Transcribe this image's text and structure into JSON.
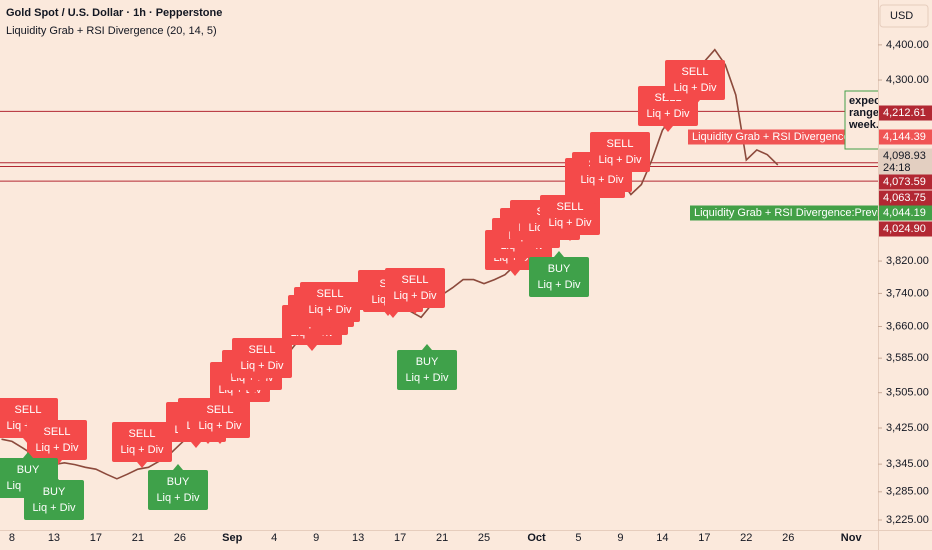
{
  "header": {
    "title": "Gold Spot / U.S. Dollar · 1h · Pepperstone",
    "indicator": "Liquidity Grab + RSI Divergence (20, 14, 5)",
    "currency": "USD"
  },
  "chart_data": {
    "type": "line",
    "categories": [
      null,
      "8",
      null,
      null,
      null,
      "13",
      null,
      null,
      null,
      "17",
      null,
      null,
      null,
      "21",
      null,
      null,
      null,
      "26",
      null,
      null,
      null,
      null,
      "Sep",
      null,
      null,
      null,
      "4",
      null,
      null,
      null,
      "9",
      null,
      null,
      null,
      "13",
      null,
      null,
      null,
      "17",
      null,
      null,
      null,
      "21",
      null,
      null,
      null,
      "25",
      null,
      null,
      null,
      null,
      "Oct",
      null,
      null,
      null,
      "5",
      null,
      null,
      null,
      "9",
      null,
      null,
      null,
      "14",
      null,
      null,
      null,
      "17",
      null,
      null,
      null,
      "22",
      null,
      null,
      null,
      "26",
      null,
      null,
      null,
      null,
      null,
      "Nov",
      null,
      null
    ],
    "values": [
      3400,
      3395,
      3381,
      3366,
      3355,
      3344,
      3348,
      3344,
      3338,
      3334,
      3323,
      3313,
      3323,
      3334,
      3338,
      3351,
      3366,
      3388,
      3410,
      3425,
      3438,
      3447,
      3461,
      3477,
      3507,
      3535,
      3558,
      3586,
      3617,
      3641,
      3658,
      3672,
      3682,
      3689,
      3701,
      3713,
      3720,
      3725,
      3713,
      3696,
      3682,
      3713,
      3737,
      3754,
      3774,
      3774,
      3764,
      3774,
      3786,
      3811,
      3829,
      3862,
      3887,
      3905,
      3939,
      3964,
      3982,
      4008,
      4029,
      4029,
      3990,
      4016,
      4081,
      4161,
      4202,
      4239,
      4287,
      4352,
      4386,
      4343,
      4258,
      4081,
      4108,
      4095,
      4068,
      null,
      null,
      null,
      null,
      null,
      null,
      null,
      null,
      null
    ],
    "color": "#8c4a3c",
    "ylim": [
      3204,
      4531
    ],
    "log_scale": true,
    "yticks": [
      {
        "value": 4400,
        "label": "4,400.00"
      },
      {
        "value": 4300,
        "label": "4,300.00"
      },
      {
        "value": 3820,
        "label": "3,820.00"
      },
      {
        "value": 3740,
        "label": "3,740.00"
      },
      {
        "value": 3660,
        "label": "3,660.00"
      },
      {
        "value": 3585,
        "label": "3,585.00"
      },
      {
        "value": 3505,
        "label": "3,505.00"
      },
      {
        "value": 3425,
        "label": "3,425.00"
      },
      {
        "value": 3345,
        "label": "3,345.00"
      },
      {
        "value": 3285,
        "label": "3,285.00"
      },
      {
        "value": 3225,
        "label": "3,225.00"
      }
    ],
    "price_labels": [
      {
        "value": 4212.61,
        "label": "4,212.61",
        "color": "#b22833",
        "line": true
      },
      {
        "value": 4144.39,
        "label": "4,144.39",
        "color": "#f05454",
        "line": false
      },
      {
        "value": 4098.93,
        "label": "4,098.93",
        "color": "#e3cfc1",
        "line": false
      },
      {
        "value": 4073.59,
        "label": "4,073.59",
        "color": "#b22833",
        "line": true
      },
      {
        "value": 4063.75,
        "label": "4,063.75",
        "color": "#b22833",
        "line": true
      },
      {
        "value": 4044.19,
        "label": "4,044.19",
        "color": "#43a047",
        "line": false
      },
      {
        "value": 4024.9,
        "label": "4,024.90",
        "color": "#b22833",
        "line": true
      }
    ],
    "countdown": "24:18",
    "level_labels": [
      "Liquidity Grab + RSI Divergence:Previous High",
      "Liquidity Grab + RSI Divergence:Previous Low"
    ],
    "note": [
      "expecti",
      "range o",
      "week."
    ],
    "signals": [
      {
        "side": "SELL",
        "text": "Liq + Div"
      },
      {
        "side": "SELL",
        "text": "Liq + Div"
      },
      {
        "side": "SELL",
        "text": "Liq + Div"
      },
      {
        "side": "SELL",
        "text": "Liq + Div"
      },
      {
        "side": "SELL",
        "text": "Liq + Div"
      },
      {
        "side": "SELL",
        "text": "Liq + Div"
      },
      {
        "side": "SELL",
        "text": "Liq + Div"
      },
      {
        "side": "SELL",
        "text": "Liq + Div"
      },
      {
        "side": "SELL",
        "text": "Liq + Div"
      },
      {
        "side": "SELL",
        "text": "Liq + Div"
      },
      {
        "side": "SELL",
        "text": "Liq + Div"
      },
      {
        "side": "SELL",
        "text": "Liq + Div"
      },
      {
        "side": "SELL",
        "text": "Liq + Div"
      },
      {
        "side": "SELL",
        "text": "Liq + Div"
      },
      {
        "side": "SELL",
        "text": "Liq + Div"
      },
      {
        "side": "SELL",
        "text": "Liq + Div"
      },
      {
        "side": "SELL",
        "text": "Liq + Div"
      },
      {
        "side": "SELL",
        "text": "Liq + Div"
      },
      {
        "side": "SELL",
        "text": "Liq + Div"
      },
      {
        "side": "SELL",
        "text": "Liq + Div"
      },
      {
        "side": "SELL",
        "text": "Liq + Div"
      },
      {
        "side": "SELL",
        "text": "Liq + Div"
      },
      {
        "side": "SELL",
        "text": "Liq + Div"
      },
      {
        "side": "SELL",
        "text": "Liq + Div"
      },
      {
        "side": "SELL",
        "text": "Liq + Div"
      },
      {
        "side": "SELL",
        "text": "Liq + Div"
      },
      {
        "side": "SELL",
        "text": "Liq + Div"
      },
      {
        "side": "BUY",
        "text": "Liq + Div"
      },
      {
        "side": "BUY",
        "text": "Liq + Div"
      },
      {
        "side": "BUY",
        "text": "Liq + Div"
      },
      {
        "side": "BUY",
        "text": "Liq + Div"
      },
      {
        "side": "BUY",
        "text": "Liq + Div"
      }
    ]
  }
}
